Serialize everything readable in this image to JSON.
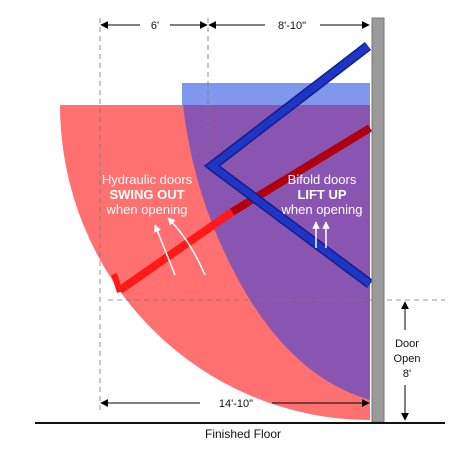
{
  "dimensions": {
    "left_width": "6'",
    "right_width": "8'-10\"",
    "total_width": "14'-10\""
  },
  "hydraulic": {
    "line1": "Hydraulic doors",
    "line2": "SWING OUT",
    "line3": "when opening"
  },
  "bifold": {
    "line1": "Bifold doors",
    "line2": "LIFT UP",
    "line3": "when opening"
  },
  "door_open": {
    "line1": "Door",
    "line2": "Open",
    "line3": "8'"
  },
  "floor_label": "Finished Floor"
}
